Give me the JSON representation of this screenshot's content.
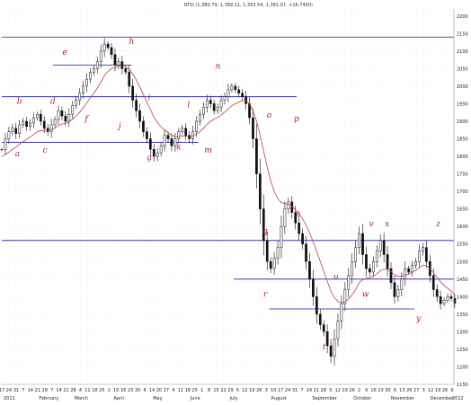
{
  "chart_data": {
    "type": "candlestick",
    "title": "RTSI (1,380.79, 1,389.11, 1,353.54, 1,381.07, +16.7400)",
    "y_ticks": [
      1150,
      1200,
      1250,
      1300,
      1350,
      1400,
      1450,
      1500,
      1550,
      1600,
      1650,
      1700,
      1750,
      1800,
      1850,
      1900,
      1950,
      2000,
      2050,
      2100,
      2150,
      2200
    ],
    "ylim": [
      1150,
      2220
    ],
    "xlim": [
      0,
      230
    ],
    "months": [
      {
        "label": "2011",
        "x": 0
      },
      {
        "label": "February",
        "x": 18
      },
      {
        "label": "March",
        "x": 36
      },
      {
        "label": "April",
        "x": 56
      },
      {
        "label": "May",
        "x": 76
      },
      {
        "label": "June",
        "x": 95
      },
      {
        "label": "July",
        "x": 115
      },
      {
        "label": "August",
        "x": 136
      },
      {
        "label": "September",
        "x": 157
      },
      {
        "label": "October",
        "x": 178
      },
      {
        "label": "November",
        "x": 197
      },
      {
        "label": "December",
        "x": 217
      },
      {
        "label": "2012",
        "x": 238
      }
    ],
    "day_ticks": [
      "17",
      "24",
      "31",
      "7",
      "14",
      "21",
      "28",
      "7",
      "14",
      "21",
      "28",
      "4",
      "11",
      "18",
      "25",
      "2",
      "10",
      "16",
      "23",
      "30",
      "6",
      "14",
      "20",
      "27",
      "4",
      "11",
      "18",
      "25",
      "1",
      "8",
      "15",
      "22",
      "29",
      "5",
      "12",
      "19",
      "26",
      "3",
      "10",
      "17",
      "24",
      "31",
      "7",
      "14",
      "21",
      "28",
      "5",
      "12",
      "19",
      "26",
      "2",
      "9",
      "16",
      "23",
      "30",
      "6",
      "13",
      "20",
      "27",
      "3",
      "12",
      "19",
      "26",
      "9"
    ],
    "horizontal_lines": [
      2140,
      1970,
      1840,
      2060,
      1560,
      1450,
      1365
    ],
    "close": [
      1820,
      1850,
      1870,
      1880,
      1865,
      1890,
      1900,
      1885,
      1895,
      1910,
      1920,
      1900,
      1880,
      1870,
      1890,
      1905,
      1930,
      1915,
      1900,
      1920,
      1945,
      1960,
      1980,
      2000,
      2020,
      2040,
      2050,
      2070,
      2100,
      2120,
      2110,
      2090,
      2060,
      2070,
      2050,
      2040,
      2000,
      1960,
      1930,
      1900,
      1870,
      1850,
      1820,
      1800,
      1810,
      1830,
      1860,
      1850,
      1830,
      1850,
      1870,
      1880,
      1860,
      1850,
      1870,
      1900,
      1920,
      1940,
      1960,
      1950,
      1930,
      1940,
      1960,
      1970,
      1990,
      2000,
      1990,
      1980,
      1970,
      1950,
      1910,
      1850,
      1750,
      1650,
      1560,
      1500,
      1480,
      1510,
      1540,
      1600,
      1650,
      1670,
      1640,
      1610,
      1580,
      1550,
      1500,
      1450,
      1400,
      1350,
      1320,
      1300,
      1260,
      1230,
      1280,
      1330,
      1380,
      1420,
      1460,
      1500,
      1540,
      1580,
      1520,
      1480,
      1470,
      1500,
      1530,
      1560,
      1520,
      1480,
      1440,
      1400,
      1420,
      1450,
      1480,
      1470,
      1490,
      1500,
      1530,
      1540,
      1500,
      1460,
      1420,
      1400,
      1380,
      1390,
      1400,
      1395,
      1381
    ],
    "ma": [
      1800,
      1805,
      1812,
      1820,
      1826,
      1834,
      1842,
      1848,
      1855,
      1862,
      1870,
      1873,
      1874,
      1874,
      1876,
      1880,
      1888,
      1892,
      1894,
      1898,
      1906,
      1915,
      1926,
      1938,
      1952,
      1967,
      1980,
      1995,
      2012,
      2030,
      2042,
      2050,
      2053,
      2058,
      2058,
      2056,
      2048,
      2035,
      2018,
      1998,
      1976,
      1955,
      1933,
      1912,
      1896,
      1884,
      1876,
      1868,
      1860,
      1856,
      1856,
      1858,
      1858,
      1857,
      1858,
      1863,
      1870,
      1880,
      1891,
      1900,
      1906,
      1911,
      1918,
      1926,
      1935,
      1944,
      1950,
      1955,
      1959,
      1958,
      1950,
      1930,
      1900,
      1860,
      1815,
      1770,
      1730,
      1700,
      1680,
      1668,
      1665,
      1664,
      1658,
      1648,
      1636,
      1622,
      1604,
      1582,
      1556,
      1528,
      1500,
      1472,
      1444,
      1416,
      1398,
      1386,
      1382,
      1385,
      1393,
      1405,
      1420,
      1440,
      1448,
      1452,
      1454,
      1458,
      1465,
      1474,
      1478,
      1478,
      1472,
      1462,
      1458,
      1458,
      1462,
      1464,
      1470,
      1475,
      1483,
      1490,
      1488,
      1480,
      1468,
      1456,
      1442,
      1432,
      1424,
      1416,
      1407
    ],
    "annotations": [
      {
        "label": "a",
        "x": 8,
        "y": 1800
      },
      {
        "label": "b",
        "x": 9,
        "y": 1950
      },
      {
        "label": "c",
        "x": 22,
        "y": 1810
      },
      {
        "label": "d",
        "x": 26,
        "y": 1950
      },
      {
        "label": "e",
        "x": 32,
        "y": 2090
      },
      {
        "label": "f",
        "x": 43,
        "y": 1900
      },
      {
        "label": "g",
        "x": 75,
        "y": 1790
      },
      {
        "label": "h",
        "x": 66,
        "y": 2120
      },
      {
        "label": "i",
        "x": 75,
        "y": 1960
      },
      {
        "label": "j",
        "x": 60,
        "y": 1880
      },
      {
        "label": "k",
        "x": 90,
        "y": 1820
      },
      {
        "label": "l",
        "x": 95,
        "y": 1940
      },
      {
        "label": "m",
        "x": 105,
        "y": 1810
      },
      {
        "label": "n",
        "x": 110,
        "y": 2050
      },
      {
        "label": "o",
        "x": 136,
        "y": 1910
      },
      {
        "label": "p",
        "x": 150,
        "y": 1900
      },
      {
        "label": "q",
        "x": 134,
        "y": 1580
      },
      {
        "label": "r",
        "x": 134,
        "y": 1400
      },
      {
        "label": "s",
        "x": 151,
        "y": 1630
      },
      {
        "label": "t",
        "x": 164,
        "y": 1250
      },
      {
        "label": "u",
        "x": 170,
        "y": 1450
      },
      {
        "label": "v",
        "x": 188,
        "y": 1600
      },
      {
        "label": "w",
        "x": 185,
        "y": 1400
      },
      {
        "label": "x",
        "x": 196,
        "y": 1600
      },
      {
        "label": "y",
        "x": 212,
        "y": 1330
      },
      {
        "label": "z",
        "x": 222,
        "y": 1600
      }
    ],
    "colors": {
      "candles": "#111111",
      "ma": "#c04048",
      "hlines": "#1a1aa0",
      "letters": "#b0202a",
      "grid": "#d8d8d8"
    }
  }
}
